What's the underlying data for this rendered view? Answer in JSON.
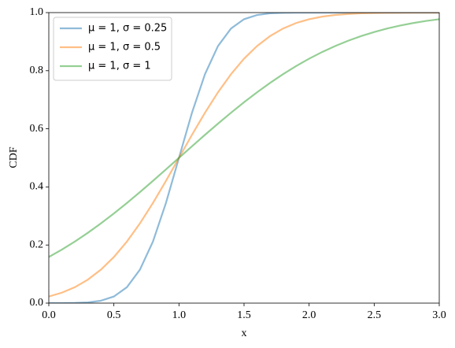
{
  "chart_data": {
    "type": "line",
    "xlabel": "x",
    "ylabel": "CDF",
    "x": [
      0,
      0.1,
      0.2,
      0.3,
      0.4,
      0.5,
      0.6,
      0.7,
      0.8,
      0.9,
      1,
      1.1,
      1.2,
      1.3,
      1.4,
      1.5,
      1.6,
      1.7,
      1.8,
      1.9,
      2,
      2.1,
      2.2,
      2.3,
      2.4,
      2.5,
      2.6,
      2.7,
      2.8,
      2.9,
      3
    ],
    "series": [
      {
        "name": "μ = 1, σ = 0.25",
        "color": "#1f77b4",
        "values": [
          3e-05,
          0.00016,
          0.00069,
          0.00256,
          0.0082,
          0.0228,
          0.0548,
          0.1151,
          0.2119,
          0.3446,
          0.5,
          0.6554,
          0.7881,
          0.8849,
          0.9452,
          0.9772,
          0.9918,
          0.9974,
          0.9993,
          0.9998,
          1,
          1,
          1,
          1,
          1,
          1,
          1,
          1,
          1,
          1,
          1
        ]
      },
      {
        "name": "μ = 1, σ = 0.5",
        "color": "#ff7f0e",
        "values": [
          0.0228,
          0.0359,
          0.0548,
          0.0808,
          0.1151,
          0.1587,
          0.2119,
          0.2743,
          0.3446,
          0.4207,
          0.5,
          0.5793,
          0.6554,
          0.7257,
          0.7881,
          0.8413,
          0.8849,
          0.9192,
          0.9452,
          0.9641,
          0.9772,
          0.9861,
          0.9918,
          0.9953,
          0.9974,
          0.9987,
          0.9993,
          0.9997,
          0.9998,
          0.9999,
          1
        ]
      },
      {
        "name": "μ = 1, σ = 1",
        "color": "#2ca02c",
        "values": [
          0.1587,
          0.1841,
          0.2119,
          0.242,
          0.2743,
          0.3085,
          0.3446,
          0.3821,
          0.4207,
          0.4602,
          0.5,
          0.5398,
          0.5793,
          0.6179,
          0.6554,
          0.6915,
          0.7257,
          0.758,
          0.7881,
          0.8159,
          0.8413,
          0.8643,
          0.8849,
          0.9032,
          0.9192,
          0.9332,
          0.9452,
          0.9554,
          0.9641,
          0.9713,
          0.9772
        ]
      }
    ],
    "xlim": [
      0,
      3
    ],
    "xticks": [
      {
        "value": 0,
        "label": "0.0"
      },
      {
        "value": 0.5,
        "label": "0.5"
      },
      {
        "value": 1,
        "label": "1.0"
      },
      {
        "value": 1.5,
        "label": "1.5"
      },
      {
        "value": 2,
        "label": "2.0"
      },
      {
        "value": 2.5,
        "label": "2.5"
      },
      {
        "value": 3,
        "label": "3.0"
      }
    ],
    "ylim": [
      0,
      1
    ],
    "yticks": [
      {
        "value": 0,
        "label": "0.0"
      },
      {
        "value": 0.2,
        "label": "0.2"
      },
      {
        "value": 0.4,
        "label": "0.4"
      },
      {
        "value": 0.6,
        "label": "0.6"
      },
      {
        "value": 0.8,
        "label": "0.8"
      },
      {
        "value": 1,
        "label": "1.0"
      }
    ],
    "grid": false,
    "legend": "upper-left"
  }
}
